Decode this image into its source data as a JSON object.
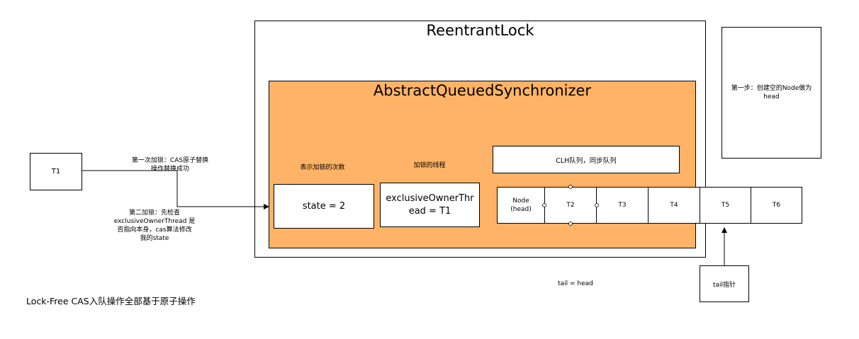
{
  "reentrant_lock": {
    "title": "ReentrantLock"
  },
  "aqs": {
    "title": "AbstractQueuedSynchronizer"
  },
  "note": {
    "text": "第一步：创建空的Node做为head"
  },
  "thread_t1": {
    "label": "T1"
  },
  "first_lock_label": {
    "line1": "第一次加锁：CAS原子替换",
    "line2": "操作替换成功"
  },
  "second_lock_label": {
    "line1": "第二加锁：先检查",
    "line2": "exclusiveOwnerThread 是",
    "line3": "否指向本身，cas算法修改",
    "line4": "我的state"
  },
  "state": {
    "caption": "表示加锁的次数",
    "value": "state = 2"
  },
  "owner": {
    "caption": "加锁的线程",
    "value": "exclusiveOwnerThread = T1"
  },
  "clh": {
    "label": "CLH队列，同步队列"
  },
  "queue_nodes": [
    {
      "line1": "Node",
      "line2": "(head)"
    },
    {
      "line1": "T2",
      "line2": ""
    },
    {
      "line1": "T3",
      "line2": ""
    },
    {
      "line1": "T4",
      "line2": ""
    },
    {
      "line1": "T5",
      "line2": ""
    },
    {
      "line1": "T6",
      "line2": ""
    }
  ],
  "tail_pointer": {
    "label": "tail指针"
  },
  "tail_eq_head": {
    "text": "tail = head"
  },
  "footer": {
    "text": "Lock-Free CAS入队操作全部基于原子操作"
  }
}
